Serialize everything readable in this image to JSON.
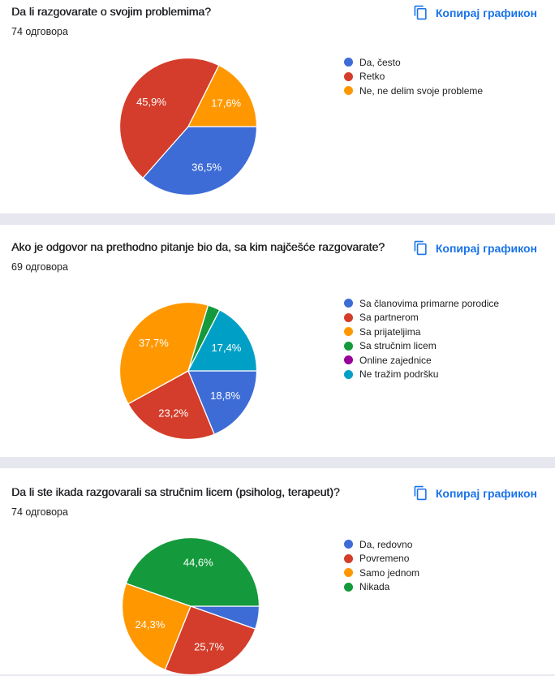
{
  "page": {
    "background": "#E7E8EF",
    "card_background": "#FFFFFF",
    "link_color": "#1A73E8",
    "title_color": "#202124",
    "slice_label_color": "#FFFFFF"
  },
  "sections": [
    {
      "title": "Da li razgovarate o svojim problemima?",
      "responses": "74 одговора",
      "copy_label": "Копирај графикон"
    },
    {
      "title": "Ako je odgovor na prethodno pitanje bio da, sa kim najčešće razgovarate?",
      "responses": "69 одговора",
      "copy_label": "Копирај графикон"
    },
    {
      "title": "Da li ste ikada razgovarali sa stručnim licem (psiholog, terapeut)?",
      "responses": "74 одговора",
      "copy_label": "Копирај графикон"
    }
  ],
  "chart_data": [
    {
      "type": "pie",
      "title": "Da li razgovarate o svojim problemima?",
      "responses_label": "74 одговора",
      "start_angle": "3-oclock-clockwise",
      "legend_position": "right",
      "slices": [
        {
          "label": "Da, često",
          "pct": 36.5,
          "display": "36,5%",
          "color": "#3D6CD7"
        },
        {
          "label": "Retko",
          "pct": 45.9,
          "display": "45,9%",
          "color": "#D43D2B"
        },
        {
          "label": "Ne, ne delim svoje probleme",
          "pct": 17.6,
          "display": "17,6%",
          "color": "#FF9800"
        }
      ]
    },
    {
      "type": "pie",
      "title": "Ako je odgovor na prethodno pitanje bio da, sa kim najčešće razgovarate?",
      "responses_label": "69 одговора",
      "start_angle": "3-oclock-clockwise",
      "legend_position": "right",
      "slices": [
        {
          "label": "Sa članovima primarne porodice",
          "pct": 18.8,
          "display": "18,8%",
          "color": "#3D6CD7"
        },
        {
          "label": "Sa partnerom",
          "pct": 23.2,
          "display": "23,2%",
          "color": "#D43D2B"
        },
        {
          "label": "Sa prijateljima",
          "pct": 37.7,
          "display": "37,7%",
          "color": "#FF9800"
        },
        {
          "label": "Sa stručnim licem",
          "pct": 2.9,
          "display": "",
          "color": "#149A3C"
        },
        {
          "label": "Online zajednice",
          "pct": 0,
          "display": "",
          "color": "#990099"
        },
        {
          "label": "Ne tražim podršku",
          "pct": 17.4,
          "display": "17,4%",
          "color": "#00A0C6"
        }
      ]
    },
    {
      "type": "pie",
      "title": "Da li ste ikada razgovarali sa stručnim licem (psiholog, terapeut)?",
      "responses_label": "74 одговора",
      "start_angle": "3-oclock-clockwise",
      "legend_position": "right",
      "slices": [
        {
          "label": "Da, redovno",
          "pct": 5.4,
          "display": "",
          "color": "#3D6CD7"
        },
        {
          "label": "Povremeno",
          "pct": 25.7,
          "display": "25,7%",
          "color": "#D43D2B"
        },
        {
          "label": "Samo jednom",
          "pct": 24.3,
          "display": "24,3%",
          "color": "#FF9800"
        },
        {
          "label": "Nikada",
          "pct": 44.6,
          "display": "44,6%",
          "color": "#149A3C"
        }
      ]
    }
  ]
}
